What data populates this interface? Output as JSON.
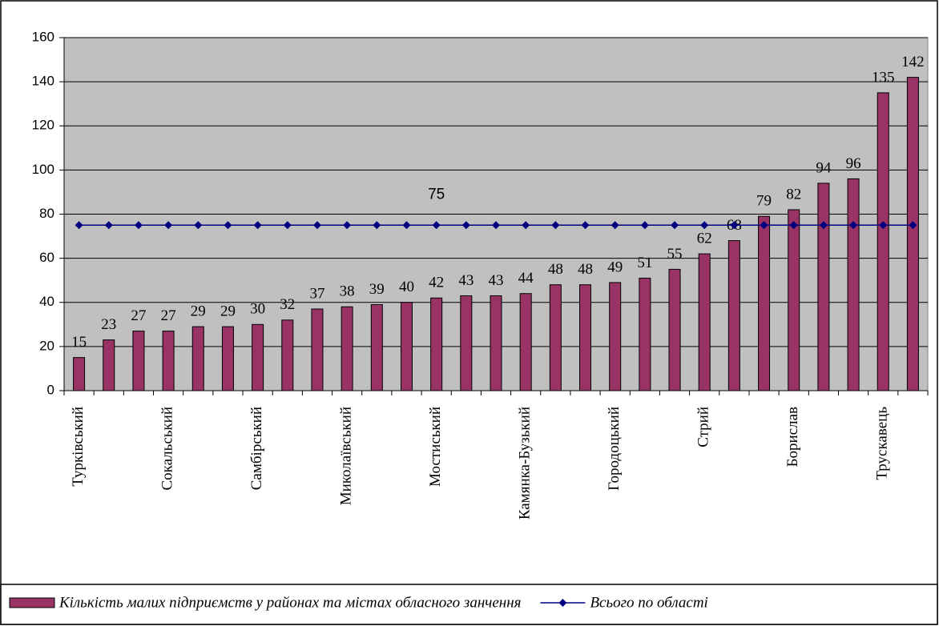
{
  "chart_data": {
    "type": "bar",
    "categories": [
      "Турківський",
      null,
      null,
      "Сокальський",
      null,
      null,
      "Самбірський",
      null,
      null,
      "Миколаївський",
      null,
      null,
      "Мостиський",
      null,
      null,
      "Камянка-Бузький",
      null,
      null,
      "Городоцький",
      null,
      null,
      "Стрий",
      null,
      null,
      "Борислав",
      null,
      null,
      "Трускавець",
      null
    ],
    "series": [
      {
        "name": "Кількість малих підприємств у районах та  містах обласного занчення",
        "type": "bar",
        "color": "#993366",
        "values": [
          15,
          23,
          27,
          27,
          29,
          29,
          30,
          32,
          37,
          38,
          39,
          40,
          42,
          43,
          43,
          44,
          48,
          48,
          49,
          51,
          55,
          62,
          68,
          79,
          82,
          94,
          96,
          135,
          142
        ]
      },
      {
        "name": "Всього по області",
        "type": "line",
        "color": "#000080",
        "values": [
          75,
          75,
          75,
          75,
          75,
          75,
          75,
          75,
          75,
          75,
          75,
          75,
          75,
          75,
          75,
          75,
          75,
          75,
          75,
          75,
          75,
          75,
          75,
          75,
          75,
          75,
          75,
          75,
          75
        ],
        "value_labels": [
          null,
          null,
          null,
          null,
          null,
          null,
          null,
          null,
          null,
          null,
          null,
          null,
          "75",
          null,
          null,
          null,
          null,
          null,
          null,
          null,
          null,
          null,
          null,
          null,
          null,
          null,
          null,
          null,
          null
        ]
      }
    ],
    "ylim": [
      0,
      160
    ],
    "yticks": [
      0,
      20,
      40,
      60,
      80,
      100,
      120,
      140,
      160
    ],
    "grid": true,
    "legend": "bottom"
  }
}
